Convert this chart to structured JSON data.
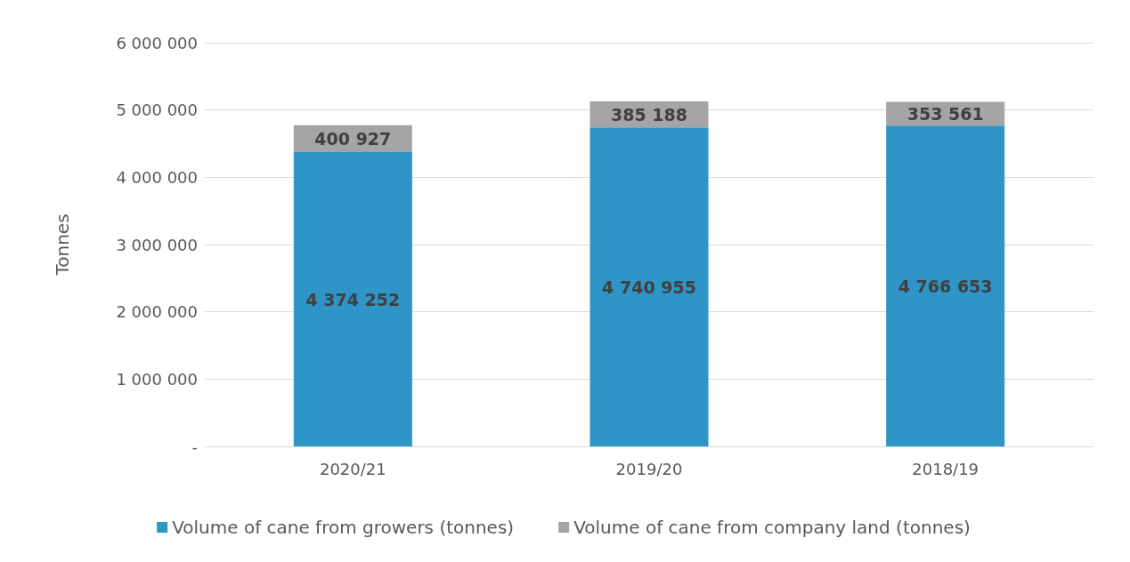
{
  "chart_data": {
    "type": "bar",
    "stacked": true,
    "ylabel": "Tonnes",
    "categories": [
      "2020/21",
      "2019/20",
      "2018/19"
    ],
    "series": [
      {
        "name": "Volume of cane from growers (tonnes)",
        "color": "#2e95c6",
        "values": [
          4374252,
          4740955,
          4766653
        ],
        "value_labels": [
          "4 374 252",
          "4 740 955",
          "4 766 653"
        ]
      },
      {
        "name": "Volume of cane from company land (tonnes)",
        "color": "#a5a5a5",
        "values": [
          400927,
          385188,
          353561
        ],
        "value_labels": [
          "400 927",
          "385 188",
          "353 561"
        ]
      }
    ],
    "ylim": [
      0,
      6000000
    ],
    "yticks": [
      {
        "value": 0,
        "label": "-"
      },
      {
        "value": 1000000,
        "label": "1 000 000"
      },
      {
        "value": 2000000,
        "label": "2 000 000"
      },
      {
        "value": 3000000,
        "label": "3 000 000"
      },
      {
        "value": 4000000,
        "label": "4 000 000"
      },
      {
        "value": 5000000,
        "label": "5 000 000"
      },
      {
        "value": 6000000,
        "label": "6 000 000"
      }
    ],
    "grid": "y",
    "legend": "bottom"
  }
}
